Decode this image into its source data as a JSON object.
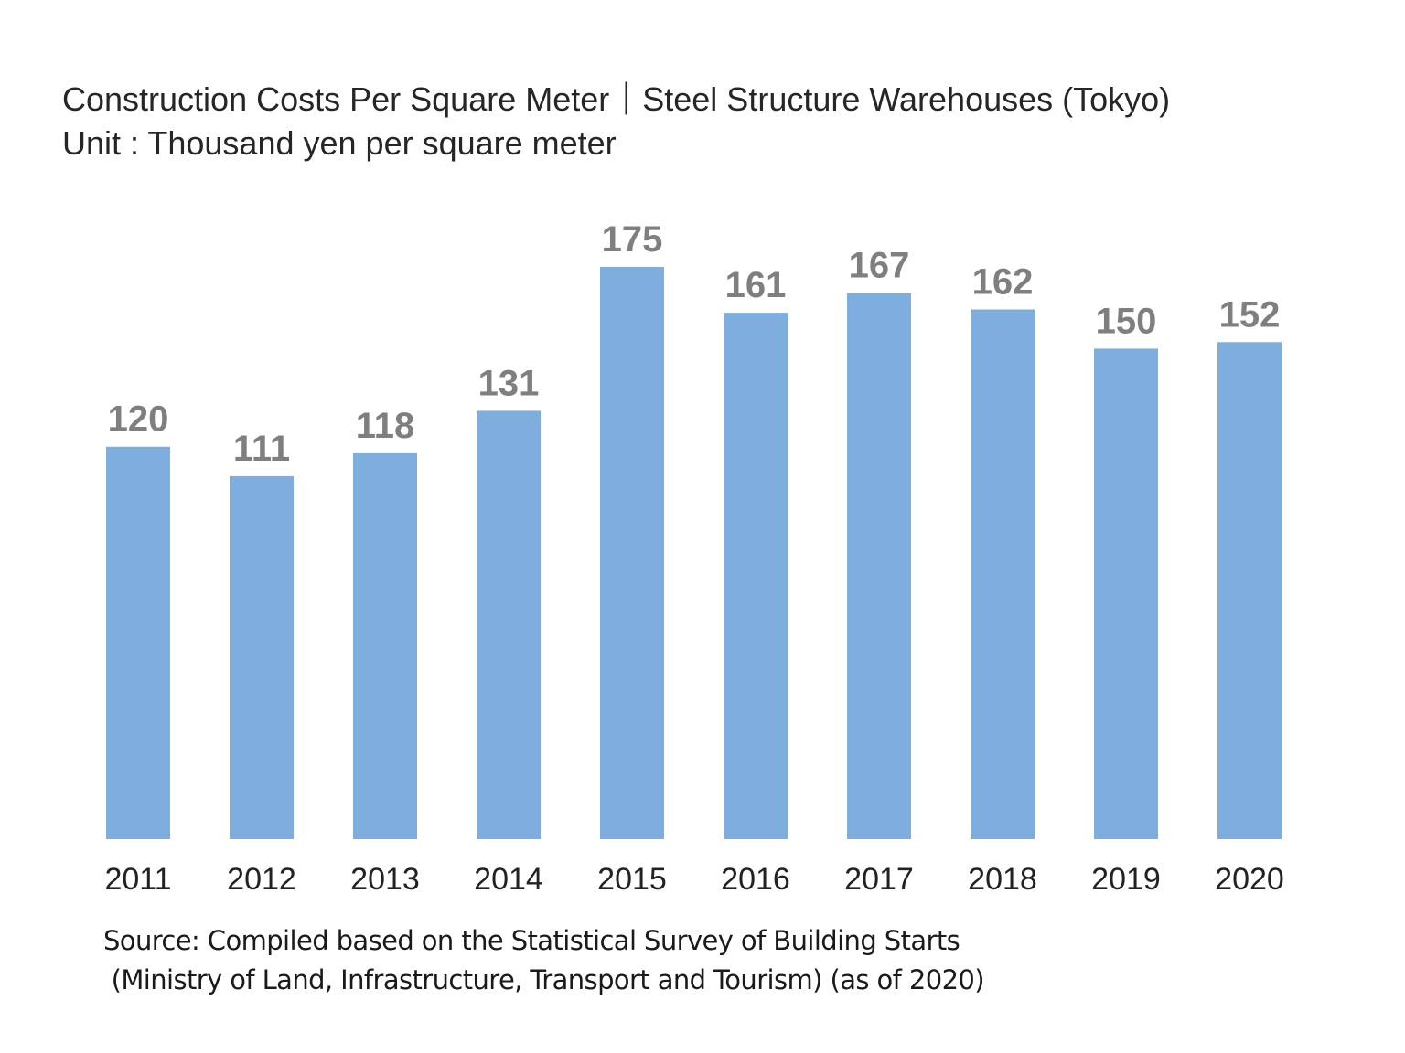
{
  "chart_data": {
    "type": "bar",
    "title": "Construction Costs Per Square Meter｜Steel Structure Warehouses (Tokyo)",
    "subtitle": "Unit : Thousand yen per square meter",
    "categories": [
      "2011",
      "2012",
      "2013",
      "2014",
      "2015",
      "2016",
      "2017",
      "2018",
      "2019",
      "2020"
    ],
    "values": [
      120,
      111,
      118,
      131,
      175,
      161,
      167,
      162,
      150,
      152
    ],
    "ylim": [
      0,
      175
    ],
    "grid": false,
    "bar_color": "#7eaedd",
    "label_color": "#7f7f7f",
    "source_line1": "Source: Compiled based on the Statistical Survey of Building Starts",
    "source_line2": " (Ministry of Land, Infrastructure, Transport and Tourism) (as of 2020)"
  }
}
